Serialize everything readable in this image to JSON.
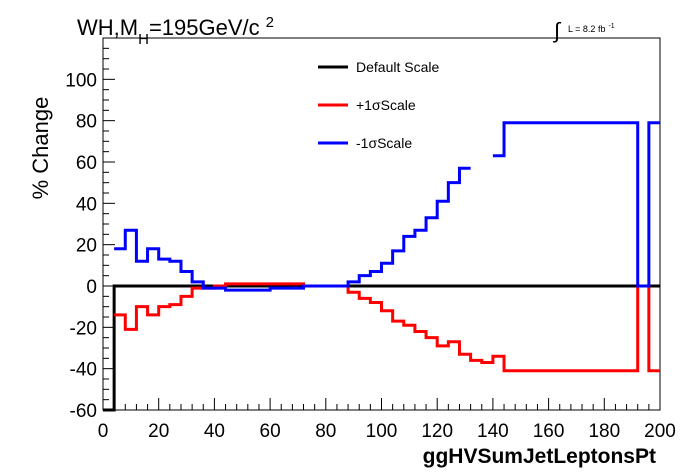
{
  "chart_data": {
    "type": "line",
    "title": {
      "prefix": "WH,M",
      "subscript": "H",
      "suffix": "=195GeV/c",
      "superscript": "2"
    },
    "lumi_label": {
      "integral": "∫",
      "text": "L = 8.2 fb",
      "superscript": "-1"
    },
    "xlabel": "ggHVSumJetLeptonsPt",
    "ylabel": "% Change",
    "xlim": [
      0,
      200
    ],
    "ylim": [
      -60,
      120
    ],
    "x_ticks": [
      0,
      20,
      40,
      60,
      80,
      100,
      120,
      140,
      160,
      180,
      200
    ],
    "y_ticks": [
      -60,
      -40,
      -20,
      0,
      20,
      40,
      60,
      80,
      100
    ],
    "bin_width": 4,
    "bin_edges_start": 0,
    "legend_position": "top-center",
    "series": [
      {
        "name": "Default Scale",
        "color": "#000000",
        "values": [
          -60,
          0,
          0,
          0,
          0,
          0,
          0,
          0,
          0,
          0,
          0,
          0,
          0,
          0,
          0,
          0,
          0,
          0,
          0,
          0,
          0,
          0,
          0,
          0,
          0,
          0,
          0,
          0,
          0,
          0,
          0,
          0,
          0,
          0,
          0,
          0,
          0,
          0,
          0,
          0,
          0,
          0,
          0,
          0,
          0,
          0,
          0,
          0,
          0,
          0
        ]
      },
      {
        "name": "+1σScale",
        "color": "#ff0000",
        "values": [
          null,
          -14,
          -21,
          -10,
          -14,
          -10,
          -9,
          -5,
          -1,
          -1,
          0,
          1,
          1,
          1,
          1,
          1,
          1,
          1,
          0,
          0,
          0,
          0,
          -3,
          -6,
          -8,
          -12,
          -17,
          -19,
          -22,
          -25,
          -29,
          -27,
          -33,
          -36,
          -37,
          -34,
          -41,
          -41,
          -41,
          -41,
          -41,
          -41,
          -41,
          -41,
          -41,
          -41,
          -41,
          -41,
          0,
          -41
        ]
      },
      {
        "name": "-1σScale",
        "color": "#0000ff",
        "values": [
          null,
          18,
          27,
          12,
          18,
          13,
          12,
          7,
          2,
          -1,
          -1,
          -2,
          -2,
          -2,
          -2,
          -1,
          -1,
          -1,
          0,
          0,
          0,
          0,
          2,
          5,
          7,
          11,
          17,
          24,
          27,
          33,
          41,
          50,
          57,
          null,
          null,
          63,
          79,
          79,
          79,
          79,
          79,
          79,
          79,
          79,
          79,
          79,
          79,
          79,
          0,
          79
        ]
      }
    ]
  }
}
